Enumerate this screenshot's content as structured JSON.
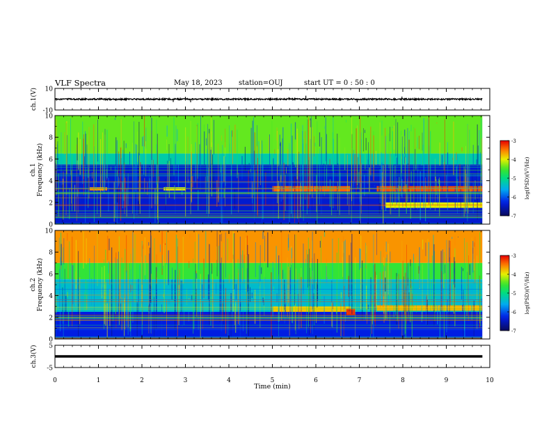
{
  "header": {
    "title": "VLF Spectra",
    "date": "May 18, 2023",
    "station": "station=OUJ",
    "start": "start  UT =   0 : 50 : 0"
  },
  "chart_data": [
    {
      "type": "line",
      "panel": "ch1-waveform",
      "ylabel": "ch.1(V)",
      "ylim": [
        -10,
        10
      ],
      "yticks": [
        "10",
        "-10"
      ],
      "x_range_min": [
        0,
        9.83
      ],
      "baseline": 0,
      "noise_amplitude": 0.7,
      "spikes": [
        {
          "x": 1.4,
          "y": -1.6
        },
        {
          "x": 2.72,
          "y": -2.6
        },
        {
          "x": 3.0,
          "y": 2.2
        },
        {
          "x": 3.12,
          "y": -2.8
        },
        {
          "x": 5.38,
          "y": 1.8
        },
        {
          "x": 5.77,
          "y": 3.2
        },
        {
          "x": 6.95,
          "y": -2.8
        },
        {
          "x": 7.98,
          "y": 2.4
        },
        {
          "x": 8.3,
          "y": -1.5
        }
      ]
    },
    {
      "type": "heatmap",
      "panel": "ch1-spectrogram",
      "ylabel": "ch.1\nFrequency (kHz)",
      "ylim": [
        0,
        10
      ],
      "yticks": [
        "0",
        "2",
        "4",
        "6",
        "8",
        "10"
      ],
      "x_range_min": [
        0,
        9.83
      ],
      "colorbar": {
        "label": "log(PSD)(V²/Hz)",
        "range": [
          -7,
          -3
        ],
        "ticks": [
          "-3",
          "-4",
          "-5",
          "-6",
          "-7"
        ]
      },
      "regions": [
        {
          "x0": 0,
          "x1": 9.83,
          "f0": 6.5,
          "f1": 10,
          "level": -4.4
        },
        {
          "x0": 0,
          "x1": 9.83,
          "f0": 5.5,
          "f1": 6.5,
          "level": -5.2
        },
        {
          "x0": 0,
          "x1": 9.83,
          "f0": 0,
          "f1": 5.5,
          "level": -6.4
        },
        {
          "x0": 0.8,
          "x1": 1.2,
          "f0": 3.1,
          "f1": 3.4,
          "level": -3.6
        },
        {
          "x0": 2.5,
          "x1": 3.0,
          "f0": 3.1,
          "f1": 3.4,
          "level": -4.0
        },
        {
          "x0": 5.0,
          "x1": 6.8,
          "f0": 3.0,
          "f1": 3.5,
          "level": -3.4
        },
        {
          "x0": 7.4,
          "x1": 9.83,
          "f0": 3.0,
          "f1": 3.5,
          "level": -3.3
        },
        {
          "x0": 7.6,
          "x1": 9.83,
          "f0": 1.5,
          "f1": 2.0,
          "level": -4.0
        }
      ]
    },
    {
      "type": "heatmap",
      "panel": "ch2-spectrogram",
      "ylabel": "ch.2\nFrequency (kHz)",
      "ylim": [
        0,
        10
      ],
      "yticks": [
        "0",
        "2",
        "4",
        "6",
        "8",
        "10"
      ],
      "x_range_min": [
        0,
        9.83
      ],
      "colorbar": {
        "label": "log(PSD)(V²/Hz)",
        "range": [
          -7,
          -3
        ],
        "ticks": [
          "-3",
          "-4",
          "-5",
          "-6",
          "-7"
        ]
      },
      "regions": [
        {
          "x0": 0,
          "x1": 9.83,
          "f0": 7.0,
          "f1": 10,
          "level": -3.6
        },
        {
          "x0": 0,
          "x1": 9.83,
          "f0": 5.5,
          "f1": 7.0,
          "level": -4.6
        },
        {
          "x0": 0,
          "x1": 9.83,
          "f0": 2.5,
          "f1": 5.5,
          "level": -5.4
        },
        {
          "x0": 0,
          "x1": 9.83,
          "f0": 0,
          "f1": 2.5,
          "level": -6.3
        },
        {
          "x0": 5.0,
          "x1": 6.8,
          "f0": 2.5,
          "f1": 3.0,
          "level": -3.8
        },
        {
          "x0": 7.4,
          "x1": 9.83,
          "f0": 2.6,
          "f1": 3.1,
          "level": -3.7
        },
        {
          "x0": 6.7,
          "x1": 6.9,
          "f0": 2.2,
          "f1": 2.8,
          "level": -3.2
        }
      ]
    },
    {
      "type": "line",
      "panel": "ch3-waveform",
      "ylabel": "ch.3(V)",
      "ylim": [
        -5,
        5
      ],
      "yticks": [
        "5",
        "-5"
      ],
      "x_range_min": [
        0,
        9.83
      ],
      "baseline": 0,
      "noise_amplitude": 0.25
    },
    {
      "type": "axis",
      "panel": "time-axis",
      "xlabel": "Time (min)",
      "xlim": [
        0,
        10
      ],
      "xticks": [
        "0",
        "1",
        "2",
        "3",
        "4",
        "5",
        "6",
        "7",
        "8",
        "9",
        "10"
      ]
    }
  ]
}
